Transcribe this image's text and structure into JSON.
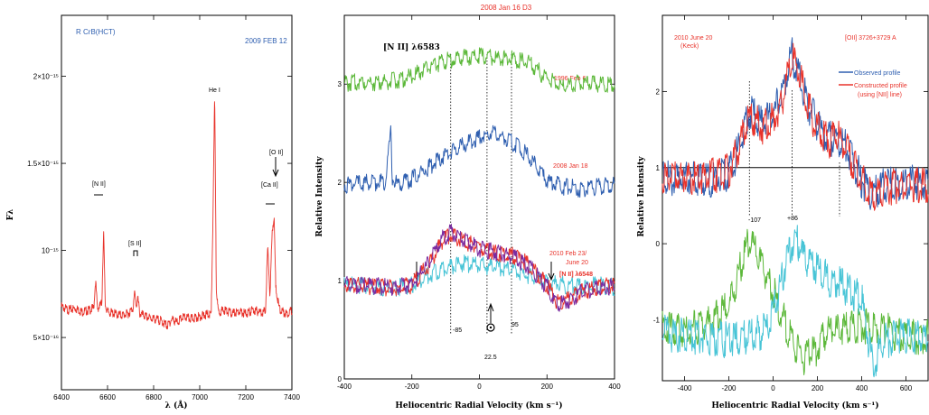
{
  "chart_data": [
    {
      "type": "line",
      "annotations": {
        "object": "R CrB(HCT)",
        "date": "2009 FEB 12",
        "lines": [
          "[N II]",
          "[S II]",
          "He I",
          "[O II]",
          "[Ca II]"
        ]
      },
      "xlabel": "λ (Å)",
      "ylabel": "Fλ",
      "xlim": [
        6400,
        7400
      ],
      "ylim": [
        2e-16,
        2.35e-15
      ],
      "xticks": [
        "6400",
        "6600",
        "6800",
        "7000",
        "7200",
        "7400"
      ],
      "yticks": [
        {
          "value": 5e-16,
          "label": "5×10⁻¹⁶"
        },
        {
          "value": 1e-15,
          "label": "10⁻¹⁵"
        },
        {
          "value": 1.5e-15,
          "label": "1.5×10⁻¹⁵"
        },
        {
          "value": 2e-15,
          "label": "2×10⁻¹⁵"
        }
      ],
      "series": [
        {
          "color": "#e8322a",
          "x": [
            6400,
            6430,
            6460,
            6490,
            6520,
            6540,
            6548,
            6556,
            6565,
            6575,
            6583,
            6590,
            6600,
            6630,
            6660,
            6690,
            6710,
            6718,
            6725,
            6731,
            6740,
            6770,
            6800,
            6830,
            6860,
            6880,
            6900,
            6930,
            6960,
            6990,
            7020,
            7050,
            7058,
            7065,
            7072,
            7080,
            7110,
            7140,
            7170,
            7200,
            7230,
            7260,
            7285,
            7295,
            7305,
            7315,
            7323,
            7330,
            7345,
            7360,
            7380,
            7400
          ],
          "y": [
            6.9e-16,
            6.7e-16,
            6.8e-16,
            6.6e-16,
            6.7e-16,
            6.8e-16,
            8.4e-16,
            6.8e-16,
            6.9e-16,
            7.1e-16,
            1.13e-15,
            7e-16,
            6.6e-16,
            6.5e-16,
            6.4e-16,
            6.5e-16,
            6.8e-16,
            7.7e-16,
            6.9e-16,
            7.4e-16,
            6.5e-16,
            6.3e-16,
            6.2e-16,
            6.1e-16,
            5.8e-16,
            6.2e-16,
            6e-16,
            6.3e-16,
            6.2e-16,
            6.3e-16,
            6.4e-16,
            6.5e-16,
            1.25e-15,
            1.91e-15,
            8e-16,
            6.6e-16,
            6.7e-16,
            6.5e-16,
            6.6e-16,
            6.5e-16,
            6.7e-16,
            6.6e-16,
            6.6e-16,
            1.03e-15,
            7.6e-16,
            1.14e-15,
            1.2e-15,
            8e-16,
            6.8e-16,
            6.6e-16,
            6.5e-16,
            6.7e-16
          ]
        }
      ]
    },
    {
      "type": "line",
      "title": "2008 Jan 16 D3",
      "annotations": {
        "line": "[N II] λ6583",
        "epochs": [
          "1996 Feb 6",
          "2008 Jan 18",
          "2010 Feb 23/",
          "June 20"
        ],
        "overlay": "[N II] λ6548",
        "markers": [
          "-85",
          "95",
          "22.5"
        ]
      },
      "xlabel": "Heliocentric Radial Velocity (km s⁻¹)",
      "ylabel": "Relative Intensity",
      "xlim": [
        -400,
        400
      ],
      "ylim": [
        0,
        3.7
      ],
      "xticks": [
        "-400",
        "-200",
        "0",
        "200",
        "400"
      ],
      "yticks": [
        "0",
        "1",
        "2",
        "3"
      ],
      "vlines": [
        -85,
        22.5,
        95
      ],
      "series": [
        {
          "color": "#5cb83a",
          "x": [
            -400,
            -350,
            -300,
            -250,
            -200,
            -150,
            -100,
            -50,
            0,
            50,
            100,
            150,
            200,
            250,
            300,
            350,
            400
          ],
          "y": [
            3.05,
            3.07,
            3.06,
            3.08,
            3.12,
            3.22,
            3.28,
            3.32,
            3.33,
            3.31,
            3.3,
            3.25,
            3.1,
            3.02,
            3.06,
            3.05,
            3.05
          ]
        },
        {
          "color": "#2f5fb0",
          "x": [
            -400,
            -330,
            -280,
            -262,
            -258,
            -252,
            -240,
            -200,
            -150,
            -100,
            -50,
            0,
            30,
            80,
            120,
            160,
            200,
            250,
            300,
            350,
            400
          ],
          "y": [
            2.02,
            2.04,
            2.05,
            2.55,
            2.1,
            2.04,
            2.02,
            2.08,
            2.2,
            2.32,
            2.42,
            2.5,
            2.55,
            2.48,
            2.4,
            2.25,
            2.05,
            2.0,
            1.98,
            2.0,
            2.02
          ]
        },
        {
          "color": "#48c4d6",
          "x": [
            -400,
            -300,
            -250,
            -200,
            -150,
            -100,
            -50,
            0,
            50,
            100,
            150,
            200,
            250,
            300,
            350,
            400
          ],
          "y": [
            1.0,
            0.98,
            0.97,
            1.0,
            1.1,
            1.18,
            1.22,
            1.2,
            1.18,
            1.15,
            1.08,
            1.02,
            1.0,
            0.98,
            1.0,
            0.98
          ]
        },
        {
          "color": "#e8322a",
          "x": [
            -400,
            -300,
            -250,
            -200,
            -150,
            -110,
            -85,
            -50,
            0,
            50,
            100,
            150,
            200,
            230,
            260,
            300,
            350,
            400
          ],
          "y": [
            1.0,
            0.98,
            0.97,
            1.0,
            1.2,
            1.45,
            1.52,
            1.45,
            1.38,
            1.32,
            1.3,
            1.2,
            1.0,
            0.82,
            0.85,
            0.93,
            0.98,
            1.0
          ]
        },
        {
          "color": "#7a2ba0",
          "x": [
            -400,
            -300,
            -250,
            -200,
            -150,
            -110,
            -85,
            -50,
            0,
            50,
            100,
            150,
            200,
            230,
            260,
            300,
            350,
            400
          ],
          "y": [
            1.0,
            0.99,
            0.97,
            1.01,
            1.22,
            1.47,
            1.54,
            1.46,
            1.37,
            1.33,
            1.28,
            1.18,
            0.98,
            0.8,
            0.84,
            0.92,
            0.97,
            0.99
          ]
        }
      ]
    },
    {
      "type": "line",
      "annotations": {
        "epoch": "2010 June 20",
        "telescope": "(Keck)",
        "line": "[OII] 3726+3729 A",
        "markers": [
          "-107",
          "+86"
        ]
      },
      "legend": [
        "Observed profile",
        "Constructed profile",
        "(using [NII] line)"
      ],
      "xlabel": "Heliocentric Radial Velocity (km s⁻¹)",
      "ylabel": "Relative Intensity",
      "xlim": [
        -500,
        700
      ],
      "ylim": [
        -1.8,
        3.0
      ],
      "xticks": [
        "-400",
        "-200",
        "0",
        "200",
        "400",
        "600"
      ],
      "yticks": [
        "-1",
        "0",
        "1",
        "2"
      ],
      "hline": 1,
      "vlines": [
        -107,
        86,
        300
      ],
      "series": [
        {
          "name": "Observed profile",
          "color": "#2f5fb0",
          "x": [
            -500,
            -400,
            -300,
            -200,
            -150,
            -107,
            -50,
            0,
            40,
            86,
            120,
            150,
            200,
            250,
            300,
            350,
            400,
            450,
            500,
            600,
            700
          ],
          "y": [
            0.98,
            1.0,
            0.95,
            1.05,
            1.4,
            1.85,
            1.7,
            1.8,
            2.1,
            2.6,
            2.3,
            2.0,
            1.7,
            1.5,
            1.5,
            1.3,
            0.95,
            0.75,
            0.88,
            0.92,
            0.9
          ]
        },
        {
          "name": "Constructed profile",
          "color": "#e8322a",
          "x": [
            -500,
            -400,
            -300,
            -200,
            -150,
            -107,
            -50,
            0,
            40,
            86,
            120,
            150,
            200,
            250,
            300,
            350,
            400,
            450,
            500,
            600,
            700
          ],
          "y": [
            1.0,
            1.0,
            0.98,
            1.08,
            1.4,
            1.78,
            1.65,
            1.75,
            2.0,
            2.55,
            2.35,
            1.95,
            1.65,
            1.48,
            1.5,
            1.25,
            0.95,
            0.7,
            0.85,
            0.9,
            0.88
          ]
        },
        {
          "color": "#5cb83a",
          "x": [
            -500,
            -400,
            -300,
            -200,
            -150,
            -107,
            -60,
            0,
            50,
            100,
            150,
            200,
            250,
            300,
            400,
            500,
            600,
            700
          ],
          "y": [
            -1.0,
            -1.02,
            -0.95,
            -0.7,
            -0.2,
            0.2,
            -0.1,
            -0.5,
            -0.9,
            -1.25,
            -1.4,
            -1.25,
            -1.0,
            -1.0,
            -0.95,
            -1.0,
            -1.1,
            -1.1
          ]
        },
        {
          "color": "#48c4d6",
          "x": [
            -500,
            -400,
            -300,
            -200,
            -100,
            -30,
            20,
            60,
            100,
            140,
            200,
            250,
            300,
            350,
            400,
            450,
            500,
            600,
            700
          ],
          "y": [
            -1.05,
            -1.1,
            -1.1,
            -1.15,
            -1.1,
            -1.0,
            -0.6,
            -0.1,
            0.2,
            -0.05,
            -0.2,
            -0.35,
            -0.4,
            -0.5,
            -0.6,
            -1.5,
            -1.15,
            -1.1,
            -1.1
          ]
        }
      ]
    }
  ]
}
